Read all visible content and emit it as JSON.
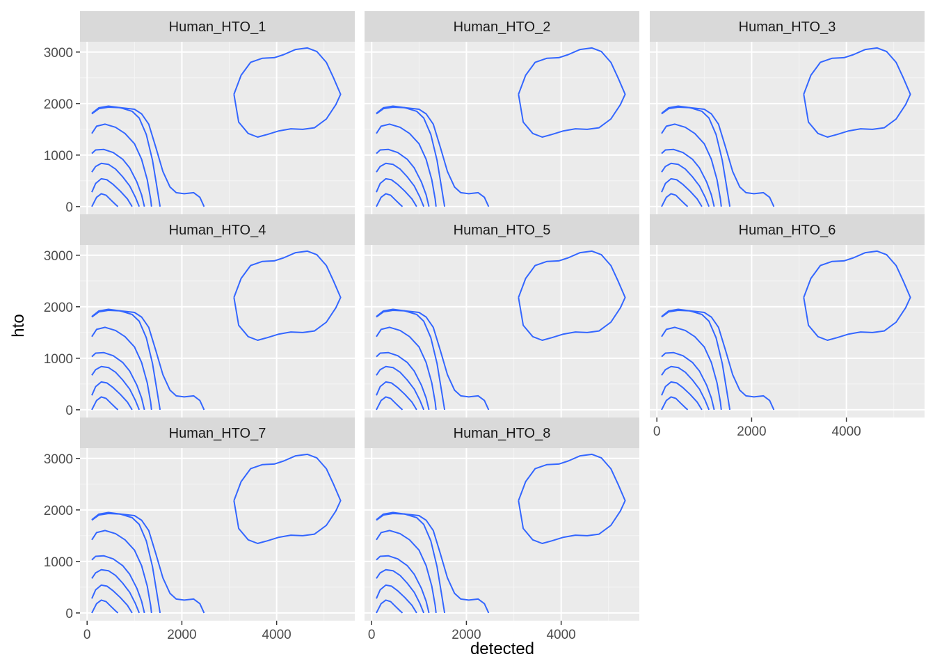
{
  "chart_data": {
    "type": "contour",
    "facets": [
      "Human_HTO_1",
      "Human_HTO_2",
      "Human_HTO_3",
      "Human_HTO_4",
      "Human_HTO_5",
      "Human_HTO_6",
      "Human_HTO_7",
      "Human_HTO_8"
    ],
    "xlabel": "detected",
    "ylabel": "hto",
    "xlim": [
      -150,
      5650
    ],
    "ylim": [
      -150,
      3200
    ],
    "x_ticks": [
      0,
      2000,
      4000
    ],
    "y_ticks": [
      0,
      1000,
      2000,
      3000
    ],
    "grid": true,
    "line_color": "#3366FF",
    "contours": [
      [
        [
          100,
          0
        ],
        [
          200,
          180
        ],
        [
          300,
          250
        ],
        [
          400,
          220
        ],
        [
          500,
          130
        ],
        [
          600,
          40
        ],
        [
          650,
          0
        ]
      ],
      [
        [
          100,
          280
        ],
        [
          180,
          450
        ],
        [
          300,
          540
        ],
        [
          420,
          520
        ],
        [
          550,
          430
        ],
        [
          700,
          300
        ],
        [
          850,
          150
        ],
        [
          950,
          0
        ]
      ],
      [
        [
          100,
          670
        ],
        [
          180,
          780
        ],
        [
          300,
          840
        ],
        [
          450,
          820
        ],
        [
          600,
          730
        ],
        [
          750,
          580
        ],
        [
          900,
          400
        ],
        [
          1020,
          180
        ],
        [
          1100,
          0
        ]
      ],
      [
        [
          100,
          1030
        ],
        [
          180,
          1100
        ],
        [
          350,
          1110
        ],
        [
          550,
          1050
        ],
        [
          750,
          920
        ],
        [
          900,
          750
        ],
        [
          1050,
          480
        ],
        [
          1150,
          230
        ],
        [
          1210,
          0
        ]
      ],
      [
        [
          100,
          1420
        ],
        [
          200,
          1560
        ],
        [
          380,
          1600
        ],
        [
          600,
          1540
        ],
        [
          800,
          1420
        ],
        [
          1000,
          1220
        ],
        [
          1150,
          920
        ],
        [
          1270,
          520
        ],
        [
          1340,
          150
        ],
        [
          1360,
          0
        ]
      ],
      [
        [
          100,
          1810
        ],
        [
          250,
          1920
        ],
        [
          450,
          1950
        ],
        [
          700,
          1920
        ],
        [
          950,
          1850
        ],
        [
          1100,
          1720
        ],
        [
          1250,
          1400
        ],
        [
          1380,
          900
        ],
        [
          1470,
          400
        ],
        [
          1540,
          0
        ]
      ],
      [
        [
          100,
          1800
        ],
        [
          250,
          1900
        ],
        [
          450,
          1930
        ],
        [
          700,
          1920
        ],
        [
          1000,
          1890
        ],
        [
          1150,
          1800
        ],
        [
          1300,
          1600
        ],
        [
          1450,
          1150
        ],
        [
          1600,
          680
        ],
        [
          1750,
          380
        ],
        [
          1880,
          270
        ],
        [
          2050,
          250
        ],
        [
          2250,
          270
        ],
        [
          2380,
          180
        ],
        [
          2470,
          0
        ]
      ],
      [
        [
          3100,
          2180
        ],
        [
          3250,
          2550
        ],
        [
          3450,
          2800
        ],
        [
          3700,
          2880
        ],
        [
          3950,
          2890
        ],
        [
          4150,
          2950
        ],
        [
          4400,
          3050
        ],
        [
          4650,
          3080
        ],
        [
          4850,
          3010
        ],
        [
          5050,
          2800
        ],
        [
          5200,
          2500
        ],
        [
          5350,
          2180
        ],
        [
          5250,
          1980
        ],
        [
          5050,
          1700
        ],
        [
          4800,
          1530
        ],
        [
          4550,
          1500
        ],
        [
          4300,
          1510
        ],
        [
          4050,
          1470
        ],
        [
          3800,
          1400
        ],
        [
          3600,
          1350
        ],
        [
          3400,
          1420
        ],
        [
          3200,
          1640
        ],
        [
          3100,
          2180
        ]
      ]
    ]
  }
}
